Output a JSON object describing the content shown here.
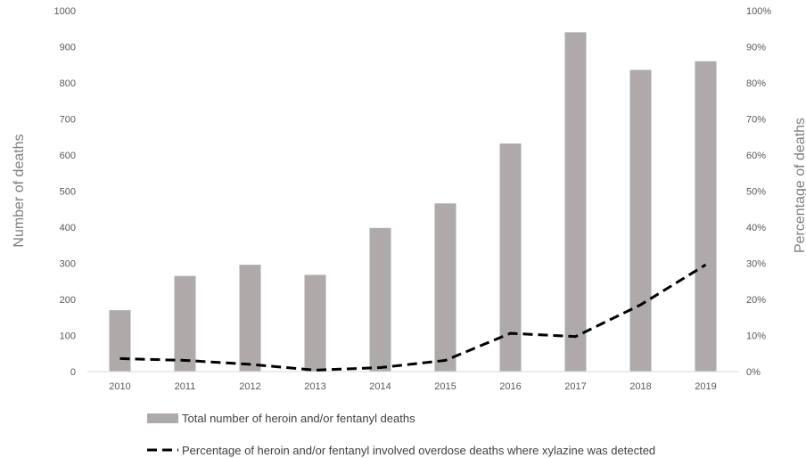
{
  "chart_data": {
    "type": "bar",
    "categories": [
      "2010",
      "2011",
      "2012",
      "2013",
      "2014",
      "2015",
      "2016",
      "2017",
      "2018",
      "2019"
    ],
    "series": [
      {
        "name": "Total number of heroin and/or fentanyl deaths",
        "kind": "bar",
        "axis": "left",
        "color": "#aeaaaa",
        "values": [
          170,
          265,
          296,
          268,
          398,
          466,
          632,
          940,
          836,
          860
        ]
      },
      {
        "name": "Percentage of heroin and/or fentanyl involved overdose deaths where xylazine was detected",
        "kind": "line",
        "style": "dashed",
        "axis": "right",
        "color": "#000000",
        "values": [
          3.6,
          3.1,
          2.0,
          0.4,
          1.1,
          3.1,
          10.6,
          9.7,
          18.5,
          29.6
        ]
      }
    ],
    "ylabel": "Number of deaths",
    "y2label": "Percentage of deaths",
    "ylim": [
      0,
      1000
    ],
    "y2lim": [
      0,
      100
    ],
    "yticks": [
      "0",
      "100",
      "200",
      "300",
      "400",
      "500",
      "600",
      "700",
      "800",
      "900",
      "1000"
    ],
    "y2ticks": [
      "0%",
      "10%",
      "20%",
      "30%",
      "40%",
      "50%",
      "60%",
      "70%",
      "80%",
      "90%",
      "100%"
    ],
    "grid": false,
    "legend_position": "bottom"
  }
}
